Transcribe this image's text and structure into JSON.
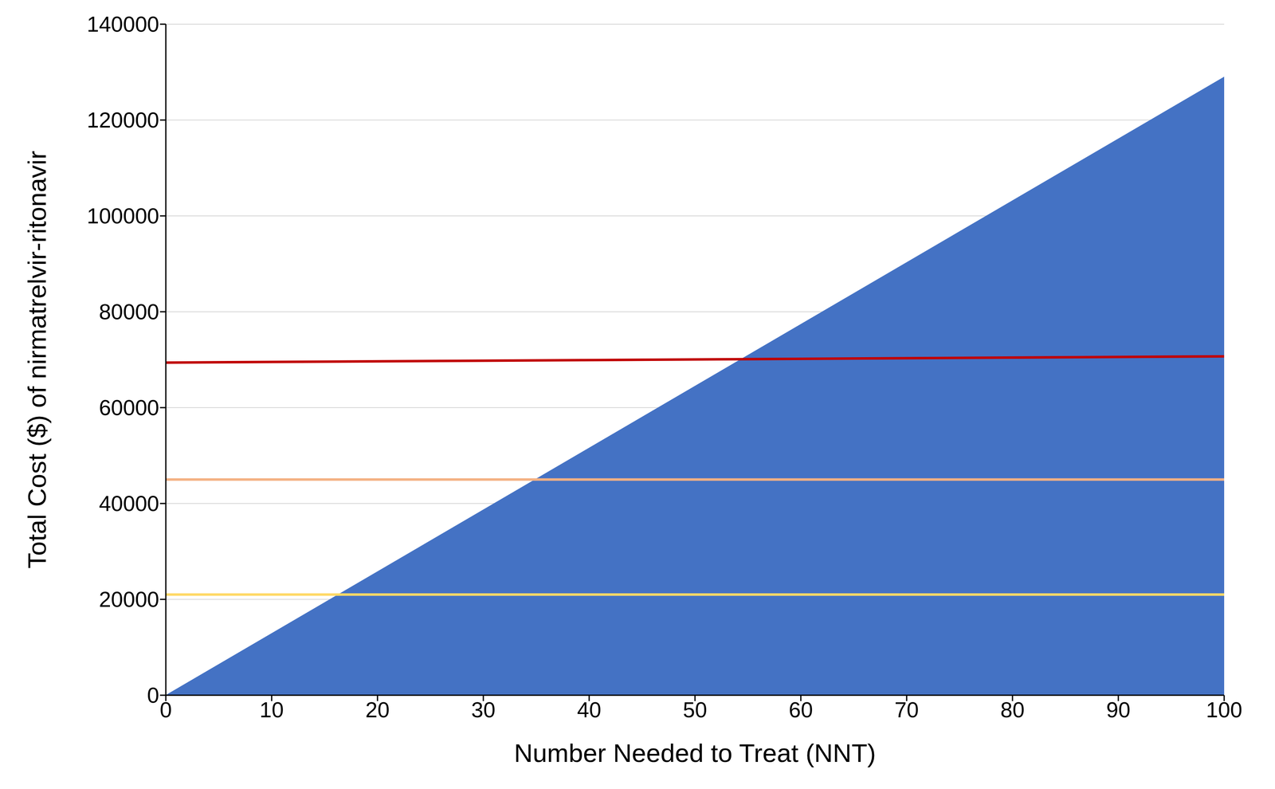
{
  "chart_data": {
    "type": "area",
    "x_label": "Number Needed to Treat (NNT)",
    "y_label": "Total Cost ($) of nirmatrelvir-ritonavir",
    "x": [
      0,
      100
    ],
    "series": [
      {
        "type": "area",
        "color": "#4472c4",
        "values": [
          0,
          129000
        ]
      },
      {
        "type": "line",
        "color": "#c00000",
        "values": [
          69400,
          70700
        ]
      },
      {
        "type": "line",
        "color": "#f4b183",
        "values": [
          45000,
          45000
        ]
      },
      {
        "type": "line",
        "color": "#ffd966",
        "values": [
          21000,
          21000
        ]
      }
    ],
    "xlim": [
      0,
      100
    ],
    "xticks": [
      0,
      10,
      20,
      30,
      40,
      50,
      60,
      70,
      80,
      90,
      100
    ],
    "ylim": [
      0,
      140000
    ],
    "yticks": [
      0,
      20000,
      40000,
      60000,
      80000,
      100000,
      120000,
      140000
    ],
    "grid": true
  }
}
